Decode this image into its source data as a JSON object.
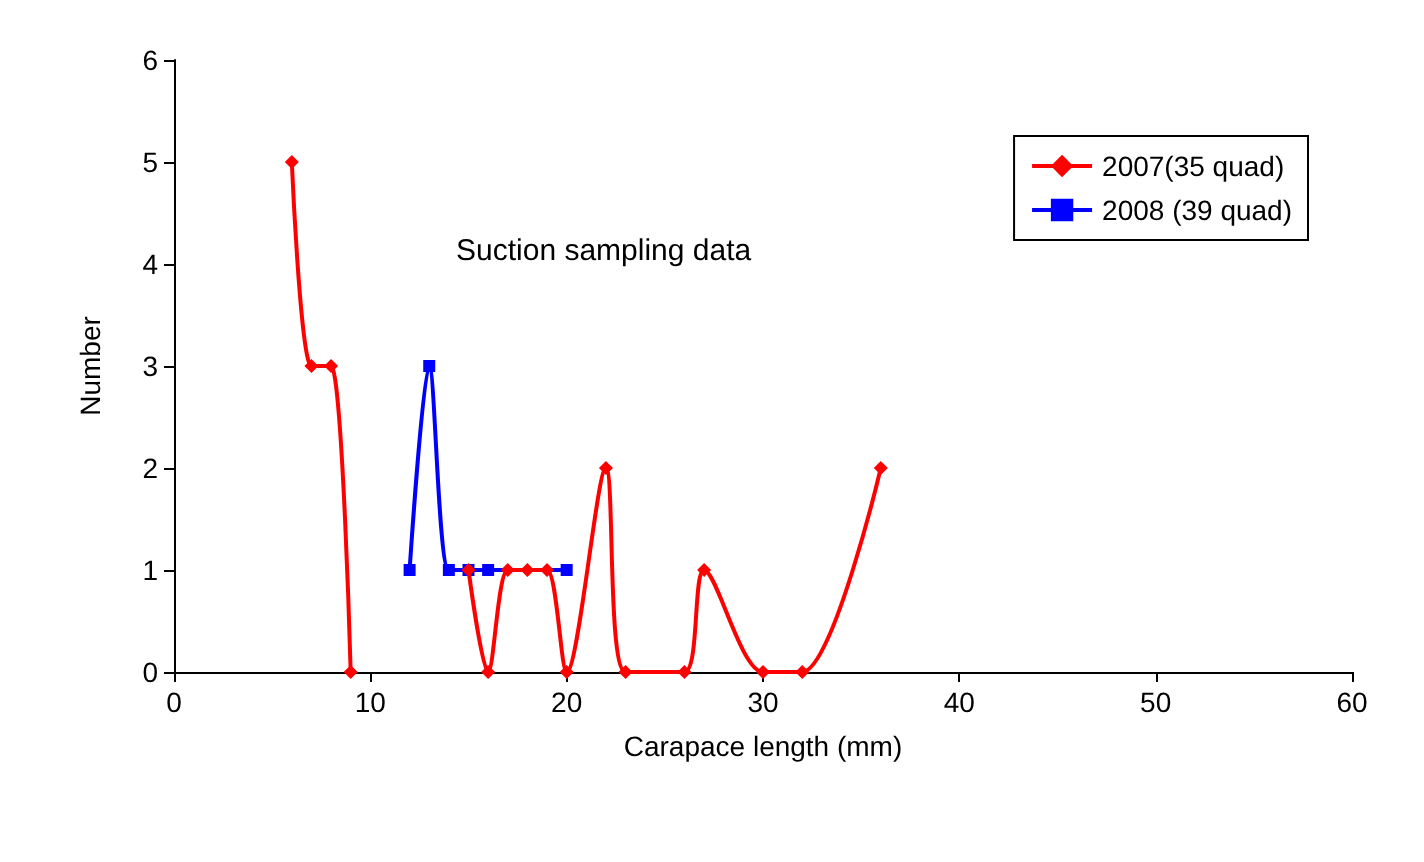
{
  "chart_data": {
    "type": "line",
    "xlabel": "Carapace length (mm)",
    "ylabel": "Number",
    "annotations": [
      "Suction sampling data"
    ],
    "xlim": [
      0,
      60
    ],
    "xticks": [
      0,
      10,
      20,
      30,
      40,
      50,
      60
    ],
    "ylim": [
      0,
      6
    ],
    "yticks": [
      0,
      1,
      2,
      3,
      4,
      5,
      6
    ],
    "grid": false,
    "legend": "top right",
    "series": [
      {
        "name": "2007(35 quad)",
        "color": "#ff0000",
        "marker": "diamond",
        "x": [
          6,
          7,
          8,
          9,
          12,
          15,
          16,
          17,
          18,
          19,
          20,
          22,
          23,
          26,
          27,
          30,
          32,
          36
        ],
        "values": [
          5,
          3,
          3,
          0,
          null,
          1,
          0,
          1,
          1,
          1,
          0,
          2,
          0,
          0,
          1,
          0,
          0,
          2
        ]
      },
      {
        "name": "2008 (39 quad)",
        "color": "#0000ff",
        "marker": "square",
        "x": [
          12,
          13,
          14,
          15,
          16,
          20
        ],
        "values": [
          1,
          3,
          1,
          1,
          1,
          1
        ]
      }
    ]
  }
}
